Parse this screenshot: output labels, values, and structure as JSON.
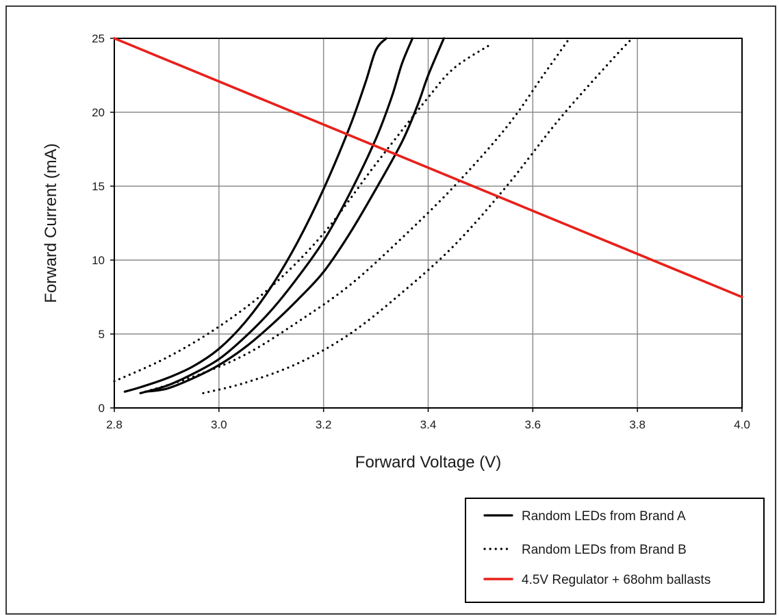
{
  "chart_data": {
    "type": "line",
    "title": "",
    "xlabel": "Forward Voltage (V)",
    "ylabel": "Forward Current (mA)",
    "xlim": [
      2.8,
      4.0
    ],
    "ylim": [
      0,
      25
    ],
    "x_ticks": [
      "2.8",
      "3.0",
      "3.2",
      "3.4",
      "3.6",
      "3.8",
      "4.0"
    ],
    "y_ticks": [
      "0",
      "5",
      "10",
      "15",
      "20",
      "25"
    ],
    "grid": true,
    "legend_position": "bottom-right",
    "legend": [
      {
        "label": "Random LEDs from Brand A",
        "style": "solid",
        "color": "#000000"
      },
      {
        "label": "Random LEDs from Brand B",
        "style": "dotted",
        "color": "#000000"
      },
      {
        "label": "4.5V Regulator + 68ohm ballasts",
        "style": "solid",
        "color": "#e8201a"
      }
    ],
    "series": [
      {
        "group": "Random LEDs from Brand A",
        "style": "solid",
        "color": "#000000",
        "x": [
          2.82,
          2.85,
          2.9,
          2.95,
          3.0,
          3.05,
          3.1,
          3.15,
          3.2,
          3.25,
          3.28,
          3.3,
          3.32
        ],
        "y": [
          1.1,
          1.4,
          2.0,
          2.8,
          4.0,
          5.8,
          8.2,
          11.2,
          14.8,
          19.0,
          22.0,
          24.2,
          25.0
        ]
      },
      {
        "group": "Random LEDs from Brand A",
        "style": "solid",
        "color": "#000000",
        "x": [
          2.85,
          2.9,
          2.95,
          3.0,
          3.05,
          3.1,
          3.15,
          3.2,
          3.25,
          3.3,
          3.33,
          3.35,
          3.37
        ],
        "y": [
          1.0,
          1.5,
          2.3,
          3.3,
          4.8,
          6.6,
          8.8,
          11.3,
          14.5,
          18.2,
          21.0,
          23.3,
          25.0
        ]
      },
      {
        "group": "Random LEDs from Brand A",
        "style": "solid",
        "color": "#000000",
        "x": [
          2.86,
          2.9,
          2.95,
          3.0,
          3.05,
          3.1,
          3.15,
          3.2,
          3.25,
          3.3,
          3.35,
          3.38,
          3.4,
          3.43
        ],
        "y": [
          1.1,
          1.3,
          2.0,
          2.9,
          4.1,
          5.6,
          7.3,
          9.2,
          11.8,
          14.8,
          18.0,
          20.5,
          22.5,
          25.0
        ]
      },
      {
        "group": "Random LEDs from Brand B",
        "style": "dotted",
        "color": "#000000",
        "x": [
          2.8,
          2.9,
          3.0,
          3.1,
          3.2,
          3.3,
          3.4,
          3.45,
          3.52
        ],
        "y": [
          1.8,
          3.4,
          5.5,
          8.2,
          11.8,
          16.5,
          21.0,
          23.0,
          24.6
        ]
      },
      {
        "group": "Random LEDs from Brand B",
        "style": "dotted",
        "color": "#000000",
        "x": [
          2.85,
          2.95,
          3.05,
          3.15,
          3.25,
          3.35,
          3.45,
          3.55,
          3.62,
          3.67
        ],
        "y": [
          1.0,
          2.1,
          3.6,
          5.8,
          8.3,
          11.5,
          15.0,
          19.0,
          22.5,
          25.0
        ]
      },
      {
        "group": "Random LEDs from Brand B",
        "style": "dotted",
        "color": "#000000",
        "x": [
          2.97,
          3.05,
          3.15,
          3.25,
          3.35,
          3.45,
          3.55,
          3.65,
          3.75,
          3.79
        ],
        "y": [
          1.0,
          1.7,
          3.0,
          5.0,
          7.8,
          11.0,
          15.0,
          19.5,
          23.5,
          25.0
        ]
      },
      {
        "group": "4.5V Regulator + 68ohm ballasts",
        "style": "solid",
        "color": "#e8201a",
        "x": [
          2.8,
          4.0
        ],
        "y": [
          25.0,
          7.5
        ]
      }
    ]
  }
}
